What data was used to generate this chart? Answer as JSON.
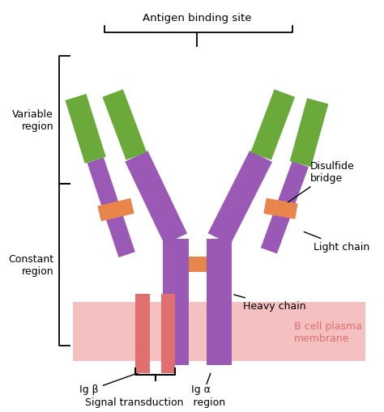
{
  "bg_color": "#ffffff",
  "purple": "#9b59b6",
  "green_color": "#6aaa3a",
  "orange": "#e8854a",
  "pink_membrane": "#f5c0c0",
  "pink_bar": "#e07070",
  "title": "Antigen binding site",
  "labels": {
    "variable_region": "Variable\nregion",
    "constant_region": "Constant\nregion",
    "disulfide_bridge": "Disulfide\nbridge",
    "light_chain": "Light chain",
    "heavy_chain": "Heavy chain",
    "membrane": "B cell plasma\nmembrane",
    "ig_beta": "Ig β",
    "ig_alpha": "Ig α",
    "signal": "Signal transduction   region"
  }
}
